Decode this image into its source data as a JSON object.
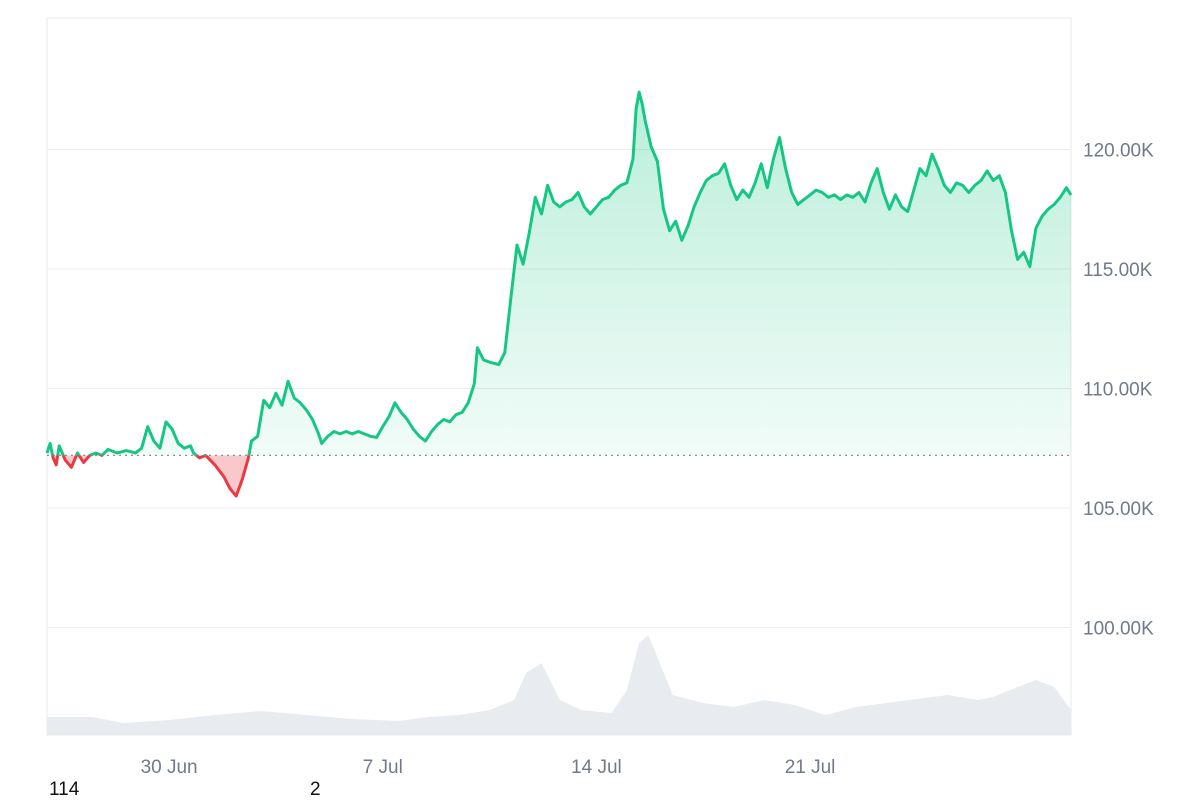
{
  "chart_data": {
    "type": "area",
    "x_ticks": [
      "30 Jun",
      "7 Jul",
      "14 Jul",
      "21 Jul"
    ],
    "y_ticks": [
      "100.00K",
      "105.00K",
      "110.00K",
      "115.00K",
      "120.00K"
    ],
    "y_tick_values": [
      100000,
      105000,
      110000,
      115000,
      120000
    ],
    "ylim": [
      95500,
      125500
    ],
    "x_start": "2025-06-26",
    "x_end": "2025-07-28",
    "baseline": 107200,
    "grid": true,
    "colors": {
      "up": "#16c784",
      "down": "#ea3943",
      "volume": "#e8ecf1",
      "grid": "#ececec"
    },
    "series": [
      {
        "values": [
          [
            0.0,
            107300
          ],
          [
            0.1,
            107700
          ],
          [
            0.2,
            107100
          ],
          [
            0.3,
            106800
          ],
          [
            0.4,
            107600
          ],
          [
            0.6,
            107000
          ],
          [
            0.8,
            106700
          ],
          [
            1.0,
            107300
          ],
          [
            1.2,
            106900
          ],
          [
            1.4,
            107200
          ],
          [
            1.6,
            107300
          ],
          [
            1.8,
            107200
          ],
          [
            2.0,
            107450
          ],
          [
            2.3,
            107300
          ],
          [
            2.6,
            107400
          ],
          [
            2.9,
            107300
          ],
          [
            3.1,
            107500
          ],
          [
            3.3,
            108400
          ],
          [
            3.5,
            107800
          ],
          [
            3.7,
            107500
          ],
          [
            3.9,
            108600
          ],
          [
            4.1,
            108300
          ],
          [
            4.3,
            107700
          ],
          [
            4.5,
            107500
          ],
          [
            4.7,
            107600
          ],
          [
            4.8,
            107300
          ],
          [
            5.0,
            107100
          ],
          [
            5.2,
            107200
          ],
          [
            5.5,
            106800
          ],
          [
            5.8,
            106300
          ],
          [
            6.0,
            105800
          ],
          [
            6.2,
            105500
          ],
          [
            6.4,
            106200
          ],
          [
            6.6,
            107100
          ],
          [
            6.7,
            107800
          ],
          [
            6.9,
            108000
          ],
          [
            7.1,
            109500
          ],
          [
            7.3,
            109200
          ],
          [
            7.5,
            109800
          ],
          [
            7.7,
            109300
          ],
          [
            7.9,
            110300
          ],
          [
            8.1,
            109600
          ],
          [
            8.3,
            109400
          ],
          [
            8.5,
            109100
          ],
          [
            8.7,
            108700
          ],
          [
            8.9,
            108100
          ],
          [
            9.0,
            107700
          ],
          [
            9.2,
            108000
          ],
          [
            9.4,
            108200
          ],
          [
            9.6,
            108100
          ],
          [
            9.8,
            108200
          ],
          [
            10.0,
            108100
          ],
          [
            10.2,
            108200
          ],
          [
            10.4,
            108100
          ],
          [
            10.6,
            108000
          ],
          [
            10.8,
            107950
          ],
          [
            11.0,
            108400
          ],
          [
            11.2,
            108800
          ],
          [
            11.4,
            109400
          ],
          [
            11.6,
            109000
          ],
          [
            11.8,
            108700
          ],
          [
            12.0,
            108300
          ],
          [
            12.2,
            108000
          ],
          [
            12.4,
            107800
          ],
          [
            12.6,
            108200
          ],
          [
            12.8,
            108500
          ],
          [
            13.0,
            108700
          ],
          [
            13.2,
            108600
          ],
          [
            13.4,
            108900
          ],
          [
            13.6,
            109000
          ],
          [
            13.8,
            109400
          ],
          [
            14.0,
            110200
          ],
          [
            14.1,
            111700
          ],
          [
            14.3,
            111200
          ],
          [
            14.5,
            111100
          ],
          [
            14.8,
            111000
          ],
          [
            15.0,
            111500
          ],
          [
            15.2,
            113800
          ],
          [
            15.4,
            116000
          ],
          [
            15.6,
            115200
          ],
          [
            15.8,
            116500
          ],
          [
            16.0,
            118000
          ],
          [
            16.2,
            117300
          ],
          [
            16.4,
            118500
          ],
          [
            16.6,
            117800
          ],
          [
            16.8,
            117600
          ],
          [
            17.0,
            117800
          ],
          [
            17.2,
            117900
          ],
          [
            17.4,
            118200
          ],
          [
            17.6,
            117600
          ],
          [
            17.8,
            117300
          ],
          [
            18.0,
            117600
          ],
          [
            18.2,
            117900
          ],
          [
            18.4,
            118000
          ],
          [
            18.6,
            118300
          ],
          [
            18.8,
            118500
          ],
          [
            19.0,
            118600
          ],
          [
            19.2,
            119600
          ],
          [
            19.3,
            121700
          ],
          [
            19.4,
            122400
          ],
          [
            19.5,
            121900
          ],
          [
            19.6,
            121200
          ],
          [
            19.8,
            120100
          ],
          [
            20.0,
            119500
          ],
          [
            20.2,
            117500
          ],
          [
            20.4,
            116600
          ],
          [
            20.6,
            117000
          ],
          [
            20.8,
            116200
          ],
          [
            21.0,
            116800
          ],
          [
            21.2,
            117600
          ],
          [
            21.4,
            118200
          ],
          [
            21.6,
            118700
          ],
          [
            21.8,
            118900
          ],
          [
            22.0,
            119000
          ],
          [
            22.2,
            119400
          ],
          [
            22.4,
            118500
          ],
          [
            22.6,
            117900
          ],
          [
            22.8,
            118300
          ],
          [
            23.0,
            118000
          ],
          [
            23.2,
            118600
          ],
          [
            23.4,
            119400
          ],
          [
            23.6,
            118400
          ],
          [
            23.8,
            119600
          ],
          [
            24.0,
            120500
          ],
          [
            24.2,
            119200
          ],
          [
            24.4,
            118200
          ],
          [
            24.6,
            117700
          ],
          [
            24.8,
            117900
          ],
          [
            25.0,
            118100
          ],
          [
            25.2,
            118300
          ],
          [
            25.4,
            118200
          ],
          [
            25.6,
            118000
          ],
          [
            25.8,
            118100
          ],
          [
            26.0,
            117900
          ],
          [
            26.2,
            118100
          ],
          [
            26.4,
            118000
          ],
          [
            26.6,
            118200
          ],
          [
            26.8,
            117800
          ],
          [
            27.0,
            118600
          ],
          [
            27.2,
            119200
          ],
          [
            27.4,
            118200
          ],
          [
            27.6,
            117500
          ],
          [
            27.8,
            118100
          ],
          [
            28.0,
            117600
          ],
          [
            28.2,
            117400
          ],
          [
            28.4,
            118300
          ],
          [
            28.6,
            119200
          ],
          [
            28.8,
            118900
          ],
          [
            29.0,
            119800
          ],
          [
            29.2,
            119200
          ],
          [
            29.4,
            118500
          ],
          [
            29.6,
            118200
          ],
          [
            29.8,
            118600
          ],
          [
            30.0,
            118500
          ],
          [
            30.2,
            118200
          ],
          [
            30.4,
            118500
          ],
          [
            30.6,
            118700
          ],
          [
            30.8,
            119100
          ],
          [
            31.0,
            118700
          ],
          [
            31.2,
            118900
          ],
          [
            31.4,
            118200
          ],
          [
            31.6,
            116600
          ],
          [
            31.8,
            115400
          ],
          [
            32.0,
            115700
          ],
          [
            32.2,
            115100
          ],
          [
            32.4,
            116700
          ],
          [
            32.6,
            117200
          ],
          [
            32.8,
            117500
          ],
          [
            33.0,
            117700
          ],
          [
            33.2,
            118000
          ],
          [
            33.4,
            118400
          ],
          [
            33.55,
            118100
          ]
        ]
      }
    ],
    "volume": [
      [
        0.0,
        0.18
      ],
      [
        1.5,
        0.18
      ],
      [
        2.5,
        0.12
      ],
      [
        4.0,
        0.15
      ],
      [
        5.5,
        0.2
      ],
      [
        7.0,
        0.24
      ],
      [
        8.5,
        0.2
      ],
      [
        10.0,
        0.16
      ],
      [
        11.5,
        0.14
      ],
      [
        12.5,
        0.18
      ],
      [
        13.5,
        0.2
      ],
      [
        14.5,
        0.25
      ],
      [
        15.3,
        0.35
      ],
      [
        15.7,
        0.62
      ],
      [
        16.2,
        0.72
      ],
      [
        16.8,
        0.35
      ],
      [
        17.5,
        0.25
      ],
      [
        18.5,
        0.22
      ],
      [
        19.0,
        0.45
      ],
      [
        19.4,
        0.92
      ],
      [
        19.7,
        1.0
      ],
      [
        20.0,
        0.78
      ],
      [
        20.5,
        0.4
      ],
      [
        21.5,
        0.32
      ],
      [
        22.5,
        0.28
      ],
      [
        23.5,
        0.35
      ],
      [
        24.5,
        0.3
      ],
      [
        25.5,
        0.2
      ],
      [
        26.5,
        0.28
      ],
      [
        27.5,
        0.32
      ],
      [
        28.5,
        0.36
      ],
      [
        29.5,
        0.4
      ],
      [
        30.5,
        0.35
      ],
      [
        31.0,
        0.38
      ],
      [
        31.8,
        0.48
      ],
      [
        32.4,
        0.55
      ],
      [
        33.0,
        0.48
      ],
      [
        33.55,
        0.25
      ]
    ]
  },
  "footnote": {
    "left": "114",
    "right": "2"
  }
}
